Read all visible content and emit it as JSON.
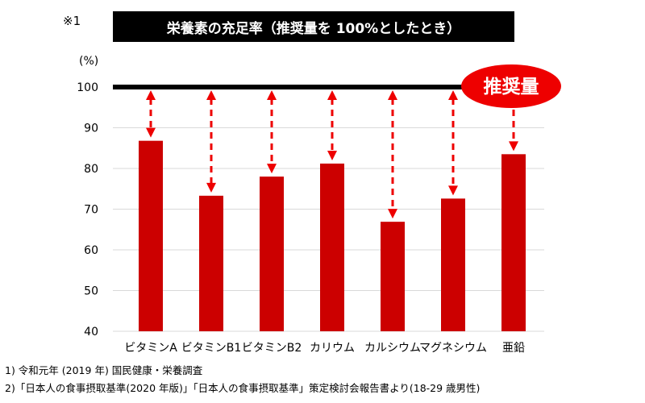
{
  "note_mark": "※1",
  "title": "栄養素の充足率（推奨量を 100%としたとき）",
  "colors": {
    "bar": "#cc0000",
    "arrow": "#ee0000",
    "badge": "#ee0000",
    "grid": "#d9d9d9",
    "reference_line": "#000000"
  },
  "chart_data": {
    "type": "bar",
    "title": "栄養素の充足率（推奨量を 100%としたとき）",
    "ylabel": "(%)",
    "ylim": [
      40,
      100
    ],
    "yticks": [
      40,
      50,
      60,
      70,
      80,
      90,
      100
    ],
    "grid": true,
    "categories": [
      "ビタミンA",
      "ビタミンB1",
      "ビタミンB2",
      "カリウム",
      "カルシウム",
      "マグネシウム",
      "亜鉛"
    ],
    "values": [
      86.8,
      73.3,
      78.0,
      81.2,
      66.9,
      72.6,
      83.5
    ],
    "reference_line": {
      "value": 100,
      "label": "推奨量"
    },
    "annotations": "dashed double-headed arrows from each bar top up to the 100% reference line"
  },
  "footnotes": [
    "1)  令和元年 (2019 年)  国民健康・栄養調査",
    "2)「日本人の食事摂取基準(2020 年版)」「日本人の食事摂取基準」策定検討会報告書より(18-29 歳男性)"
  ]
}
